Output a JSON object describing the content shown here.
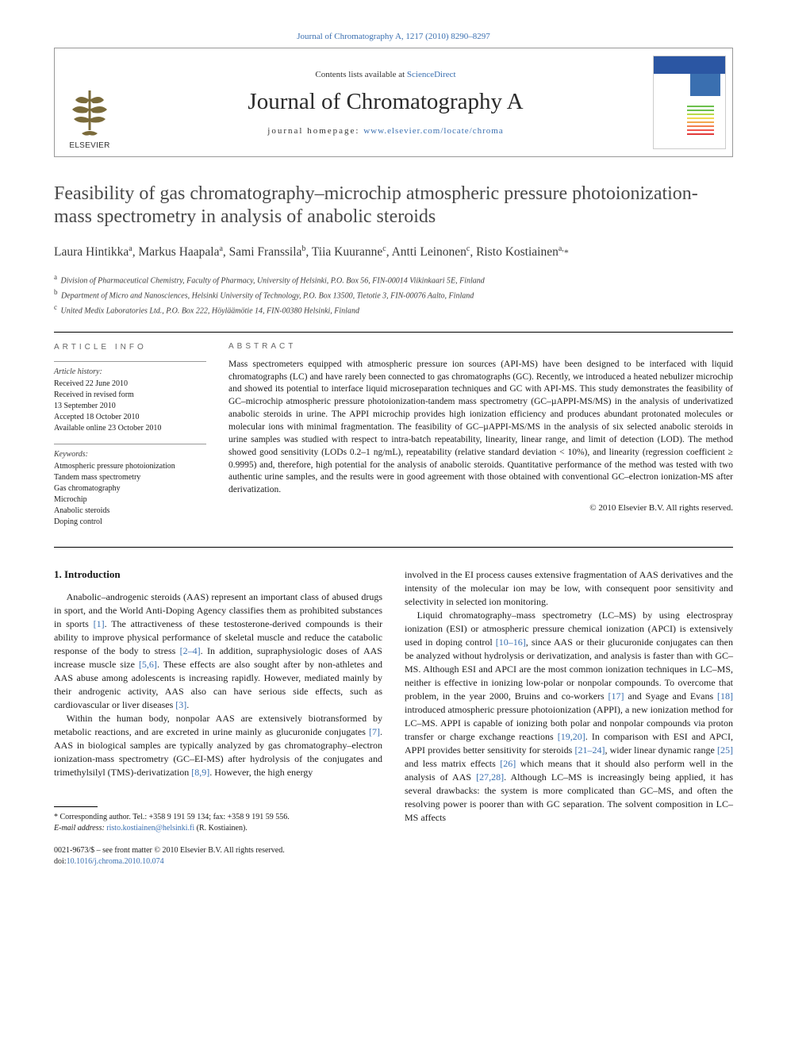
{
  "citation": "Journal of Chromatography A, 1217 (2010) 8290–8297",
  "header": {
    "contents_prefix": "Contents lists available at ",
    "contents_link": "ScienceDirect",
    "journal_name": "Journal of Chromatography A",
    "homepage_prefix": "journal homepage: ",
    "homepage_link": "www.elsevier.com/locate/chroma",
    "publisher": "ELSEVIER"
  },
  "cover": {
    "line_colors": [
      "#6bbf4b",
      "#6bbf4b",
      "#b8d948",
      "#f2d94e",
      "#f2a84e",
      "#f27e4e",
      "#f2564e",
      "#e23b3b"
    ]
  },
  "title": "Feasibility of gas chromatography–microchip atmospheric pressure photoionization-mass spectrometry in analysis of anabolic steroids",
  "authors_html": "Laura Hintikka<sup>a</sup>, Markus Haapala<sup>a</sup>, Sami Franssila<sup>b</sup>, Tiia Kuuranne<sup>c</sup>, Antti Leinonen<sup>c</sup>, Risto Kostiainen<sup>a,</sup><span class='corr'>*</span>",
  "affiliations": [
    {
      "marker": "a",
      "text": "Division of Pharmaceutical Chemistry, Faculty of Pharmacy, University of Helsinki, P.O. Box 56, FIN-00014 Viikinkaari 5E, Finland"
    },
    {
      "marker": "b",
      "text": "Department of Micro and Nanosciences, Helsinki University of Technology, P.O. Box 13500, Tietotie 3, FIN-00076 Aalto, Finland"
    },
    {
      "marker": "c",
      "text": "United Medix Laboratories Ltd., P.O. Box 222, Höyläämötie 14, FIN-00380 Helsinki, Finland"
    }
  ],
  "article_info": {
    "heading": "article info",
    "history_label": "Article history:",
    "history": [
      "Received 22 June 2010",
      "Received in revised form",
      "13 September 2010",
      "Accepted 18 October 2010",
      "Available online 23 October 2010"
    ],
    "keywords_label": "Keywords:",
    "keywords": [
      "Atmospheric pressure photoionization",
      "Tandem mass spectrometry",
      "Gas chromatography",
      "Microchip",
      "Anabolic steroids",
      "Doping control"
    ]
  },
  "abstract": {
    "heading": "abstract",
    "text": "Mass spectrometers equipped with atmospheric pressure ion sources (API-MS) have been designed to be interfaced with liquid chromatographs (LC) and have rarely been connected to gas chromatographs (GC). Recently, we introduced a heated nebulizer microchip and showed its potential to interface liquid microseparation techniques and GC with API-MS. This study demonstrates the feasibility of GC–microchip atmospheric pressure photoionization-tandem mass spectrometry (GC–µAPPI-MS/MS) in the analysis of underivatized anabolic steroids in urine. The APPI microchip provides high ionization efficiency and produces abundant protonated molecules or molecular ions with minimal fragmentation. The feasibility of GC–µAPPI-MS/MS in the analysis of six selected anabolic steroids in urine samples was studied with respect to intra-batch repeatability, linearity, linear range, and limit of detection (LOD). The method showed good sensitivity (LODs 0.2–1 ng/mL), repeatability (relative standard deviation < 10%), and linearity (regression coefficient ≥ 0.9995) and, therefore, high potential for the analysis of anabolic steroids. Quantitative performance of the method was tested with two authentic urine samples, and the results were in good agreement with those obtained with conventional GC–electron ionization-MS after derivatization.",
    "copyright": "© 2010 Elsevier B.V. All rights reserved."
  },
  "body": {
    "section_number": "1.",
    "section_title": "Introduction",
    "col1_paras": [
      "Anabolic–androgenic steroids (AAS) represent an important class of abused drugs in sport, and the World Anti-Doping Agency classifies them as prohibited substances in sports <a href='#'>[1]</a>. The attractiveness of these testosterone-derived compounds is their ability to improve physical performance of skeletal muscle and reduce the catabolic response of the body to stress <a href='#'>[2–4]</a>. In addition, supraphysiologic doses of AAS increase muscle size <a href='#'>[5,6]</a>. These effects are also sought after by non-athletes and AAS abuse among adolescents is increasing rapidly. However, mediated mainly by their androgenic activity, AAS also can have serious side effects, such as cardiovascular or liver diseases <a href='#'>[3]</a>.",
      "Within the human body, nonpolar AAS are extensively biotransformed by metabolic reactions, and are excreted in urine mainly as glucuronide conjugates <a href='#'>[7]</a>. AAS in biological samples are typically analyzed by gas chromatography–electron ionization-mass spectrometry (GC–EI-MS) after hydrolysis of the conjugates and trimethylsilyl (TMS)-derivatization <a href='#'>[8,9]</a>. However, the high energy"
    ],
    "col2_paras": [
      "involved in the EI process causes extensive fragmentation of AAS derivatives and the intensity of the molecular ion may be low, with consequent poor sensitivity and selectivity in selected ion monitoring.",
      "Liquid chromatography–mass spectrometry (LC–MS) by using electrospray ionization (ESI) or atmospheric pressure chemical ionization (APCI) is extensively used in doping control <a href='#'>[10–16]</a>, since AAS or their glucuronide conjugates can then be analyzed without hydrolysis or derivatization, and analysis is faster than with GC–MS. Although ESI and APCI are the most common ionization techniques in LC–MS, neither is effective in ionizing low-polar or nonpolar compounds. To overcome that problem, in the year 2000, Bruins and co-workers <a href='#'>[17]</a> and Syage and Evans <a href='#'>[18]</a> introduced atmospheric pressure photoionization (APPI), a new ionization method for LC–MS. APPI is capable of ionizing both polar and nonpolar compounds via proton transfer or charge exchange reactions <a href='#'>[19,20]</a>. In comparison with ESI and APCI, APPI provides better sensitivity for steroids <a href='#'>[21–24]</a>, wider linear dynamic range <a href='#'>[25]</a> and less matrix effects <a href='#'>[26]</a> which means that it should also perform well in the analysis of AAS <a href='#'>[27,28]</a>. Although LC–MS is increasingly being applied, it has several drawbacks: the system is more complicated than GC–MS, and often the resolving power is poorer than with GC separation. The solvent composition in LC–MS affects"
    ]
  },
  "footnote": {
    "corr_text": "* Corresponding author. Tel.: +358 9 191 59 134; fax: +358 9 191 59 556.",
    "email_label": "E-mail address:",
    "email": "risto.kostiainen@helsinki.fi",
    "email_person": "(R. Kostiainen)."
  },
  "frontmatter": {
    "line1": "0021-9673/$ – see front matter © 2010 Elsevier B.V. All rights reserved.",
    "doi_prefix": "doi:",
    "doi": "10.1016/j.chroma.2010.10.074"
  },
  "colors": {
    "link": "#3a6fb0",
    "text": "#1a1a1a",
    "grey_heading": "#666666"
  }
}
